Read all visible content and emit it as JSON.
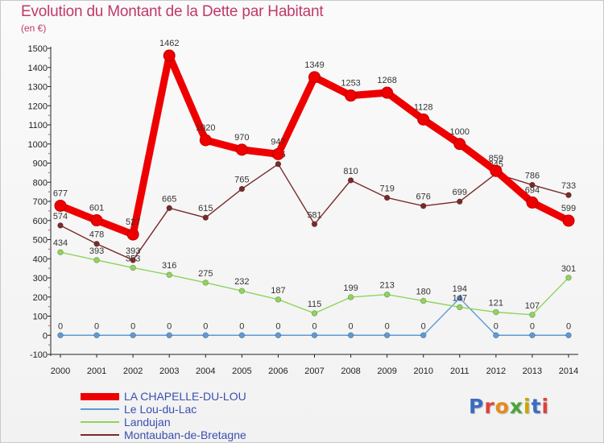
{
  "title": "Evolution du Montant de la Dette par Habitant",
  "unit_label": "(en €)",
  "logo_text": "Proxiti",
  "chart_data": {
    "type": "line",
    "x": [
      "2000",
      "2001",
      "2002",
      "2003",
      "2004",
      "2005",
      "2006",
      "2007",
      "2008",
      "2009",
      "2010",
      "2011",
      "2012",
      "2013",
      "2014"
    ],
    "y_ticks": [
      -100,
      0,
      100,
      200,
      300,
      400,
      500,
      600,
      700,
      800,
      900,
      1000,
      1100,
      1200,
      1300,
      1400,
      1500
    ],
    "ylim": [
      -100,
      1500
    ],
    "grid": false,
    "legend_position": "bottom-left",
    "series": [
      {
        "name": "LA CHAPELLE-DU-LOU",
        "color": "#ee0000",
        "style": "thick",
        "values": [
          677,
          601,
          527,
          1462,
          1020,
          970,
          947,
          1349,
          1253,
          1268,
          1128,
          1000,
          859,
          694,
          599
        ]
      },
      {
        "name": "Le Lou-du-Lac",
        "color": "#5b9bd5",
        "style": "thin",
        "values": [
          0,
          0,
          0,
          0,
          0,
          0,
          0,
          0,
          0,
          0,
          0,
          194,
          0,
          0,
          0
        ]
      },
      {
        "name": "Landujan",
        "color": "#8fd45c",
        "style": "thin",
        "values": [
          434,
          393,
          353,
          316,
          275,
          232,
          187,
          115,
          199,
          213,
          180,
          147,
          121,
          107,
          301
        ]
      },
      {
        "name": "Montauban-de-Bretagne",
        "color": "#7a2a2a",
        "style": "thin",
        "values": [
          574,
          478,
          393,
          665,
          615,
          765,
          895,
          581,
          810,
          719,
          676,
          699,
          845,
          786,
          733
        ]
      }
    ]
  }
}
